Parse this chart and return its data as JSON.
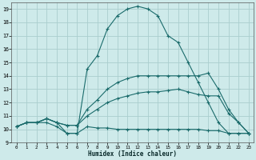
{
  "xlabel": "Humidex (Indice chaleur)",
  "xlim": [
    -0.5,
    23.5
  ],
  "ylim": [
    9,
    19.5
  ],
  "yticks": [
    9,
    10,
    11,
    12,
    13,
    14,
    15,
    16,
    17,
    18,
    19
  ],
  "xticks": [
    0,
    1,
    2,
    3,
    4,
    5,
    6,
    7,
    8,
    9,
    10,
    11,
    12,
    13,
    14,
    15,
    16,
    17,
    18,
    19,
    20,
    21,
    22,
    23
  ],
  "bg_color": "#ceeaea",
  "grid_color": "#aacece",
  "line_color": "#1a6b6b",
  "curves": [
    {
      "x": [
        0,
        1,
        2,
        3,
        4,
        5,
        6,
        7,
        8,
        9,
        10,
        11,
        12,
        13,
        14,
        15,
        16,
        17,
        18,
        19,
        20,
        21,
        22,
        23
      ],
      "y": [
        10.2,
        10.5,
        10.5,
        10.5,
        10.2,
        9.7,
        9.7,
        10.2,
        10.1,
        10.1,
        10.0,
        10.0,
        10.0,
        10.0,
        10.0,
        10.0,
        10.0,
        10.0,
        10.0,
        9.9,
        9.9,
        9.7,
        9.7,
        9.7
      ]
    },
    {
      "x": [
        0,
        1,
        2,
        3,
        4,
        5,
        6,
        7,
        8,
        9,
        10,
        11,
        12,
        13,
        14,
        15,
        16,
        17,
        18,
        19,
        20,
        21,
        22,
        23
      ],
      "y": [
        10.2,
        10.5,
        10.5,
        10.8,
        10.5,
        10.3,
        10.3,
        11.0,
        11.5,
        12.0,
        12.3,
        12.5,
        12.7,
        12.8,
        12.8,
        12.9,
        13.0,
        12.8,
        12.6,
        12.5,
        12.5,
        11.2,
        10.5,
        9.7
      ]
    },
    {
      "x": [
        0,
        1,
        2,
        3,
        4,
        5,
        6,
        7,
        8,
        9,
        10,
        11,
        12,
        13,
        14,
        15,
        16,
        17,
        18,
        19,
        20,
        21,
        22,
        23
      ],
      "y": [
        10.2,
        10.5,
        10.5,
        10.8,
        10.5,
        10.3,
        10.3,
        11.5,
        12.2,
        13.0,
        13.5,
        13.8,
        14.0,
        14.0,
        14.0,
        14.0,
        14.0,
        14.0,
        14.0,
        14.2,
        13.0,
        11.5,
        10.5,
        9.7
      ]
    },
    {
      "x": [
        0,
        1,
        2,
        3,
        4,
        5,
        6,
        7,
        8,
        9,
        10,
        11,
        12,
        13,
        14,
        15,
        16,
        17,
        18,
        19,
        20,
        21,
        22,
        23
      ],
      "y": [
        10.2,
        10.5,
        10.5,
        10.8,
        10.5,
        9.7,
        9.7,
        14.5,
        15.5,
        17.5,
        18.5,
        19.0,
        19.2,
        19.0,
        18.5,
        17.0,
        16.5,
        15.0,
        13.5,
        12.0,
        10.5,
        9.7,
        9.7,
        9.7
      ]
    }
  ]
}
